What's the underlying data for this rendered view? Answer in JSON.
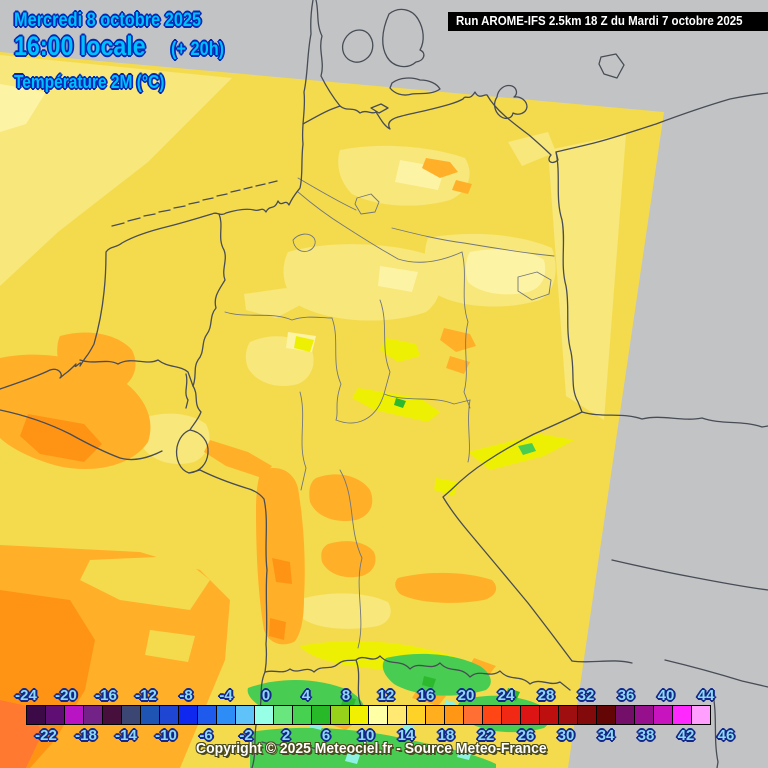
{
  "header": {
    "date_label": "Mercredi 8 octobre 2025",
    "time_label": "16:00 locale",
    "offset_label": "(+ 20h)",
    "variable_label": "Température 2M (°C)",
    "run_label": "Run AROME-IFS 2.5km 18 Z du Mardi 7 octobre 2025"
  },
  "footer": {
    "copyright": "Copyright © 2025 Meteociel.fr - Source Meteo-France"
  },
  "colorbar": {
    "unit": "°C",
    "start": -24,
    "step": 2,
    "top_labels": [
      "-24",
      "-20",
      "-16",
      "-12",
      "-8",
      "-4",
      "0",
      "4",
      "8",
      "12",
      "16",
      "20",
      "24",
      "28",
      "32",
      "36",
      "40",
      "44"
    ],
    "bottom_labels": [
      "-22",
      "-18",
      "-14",
      "-10",
      "-6",
      "-2",
      "2",
      "6",
      "10",
      "14",
      "18",
      "22",
      "26",
      "30",
      "34",
      "38",
      "42",
      "46"
    ],
    "colors": [
      "#3c0a46",
      "#5f0f73",
      "#b914c3",
      "#732387",
      "#460f3c",
      "#3c4673",
      "#1e55b4",
      "#1e46d2",
      "#0f28f0",
      "#1e5aeb",
      "#2d8cf5",
      "#5fc3fa",
      "#96ffe6",
      "#69e67d",
      "#46d250",
      "#28b928",
      "#96d219",
      "#f0f000",
      "#ffffa5",
      "#ffe973",
      "#ffd228",
      "#ffaf1e",
      "#ff9614",
      "#ff6e32",
      "#ff4614",
      "#f02814",
      "#dc1414",
      "#be0f0f",
      "#a00f0f",
      "#820a0a",
      "#640505",
      "#730f69",
      "#960f8c",
      "#c814be",
      "#ff28ff",
      "#ffa0ff"
    ]
  },
  "map": {
    "outside_color": "#c2c3c5",
    "domain_base_color": "#f4db4e",
    "light_band_color": "#f8e77a",
    "pale_band_color": "#fdf3a4",
    "cold_ridge_color": "#eef004",
    "warm_color": "#ffb028",
    "hot_color": "#ff9414",
    "mountain_green": "#49cc52",
    "mountain_cyan": "#8df2e4",
    "border_color": "#474c55",
    "state_border_color": "#71767e",
    "tick_label_color": "#8fd9f0"
  }
}
